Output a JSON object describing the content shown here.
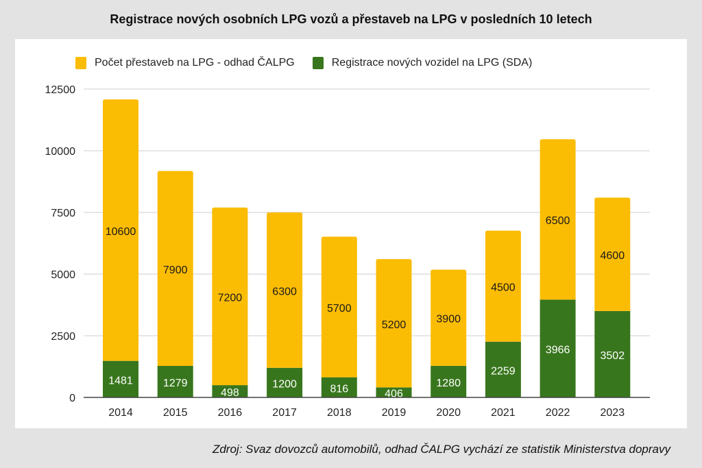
{
  "chart_data": {
    "type": "bar",
    "stacked": true,
    "title": "Registrace nových osobních LPG vozů a přestaveb na LPG v posledních 10 letech",
    "xlabel": "",
    "ylabel": "",
    "ylim": [
      0,
      12500
    ],
    "yticks": [
      0,
      2500,
      5000,
      7500,
      10000,
      12500
    ],
    "ytick_labels": [
      "0",
      "2500",
      "5000",
      "7500",
      "10000",
      "12500"
    ],
    "grid": true,
    "legend_position": "top-left",
    "categories": [
      "2014",
      "2015",
      "2016",
      "2017",
      "2018",
      "2019",
      "2020",
      "2021",
      "2022",
      "2023"
    ],
    "series": [
      {
        "name": "Registrace nových vozidel na LPG (SDA)",
        "color": "#38761d",
        "label_color": "#ffffff",
        "values": [
          1481,
          1279,
          498,
          1200,
          816,
          406,
          1280,
          2259,
          3966,
          3502
        ]
      },
      {
        "name": "Počet přestaveb na LPG - odhad ČALPG",
        "color": "#fbbc04",
        "label_color": "#1a1a1a",
        "values": [
          10600,
          7900,
          7200,
          6300,
          5700,
          5200,
          3900,
          4500,
          6500,
          4600
        ]
      }
    ],
    "legend_order": [
      1,
      0
    ],
    "source": "Zdroj: Svaz dovozců automobilů, odhad ČALPG vychází ze statistik Ministerstva dopravy"
  }
}
